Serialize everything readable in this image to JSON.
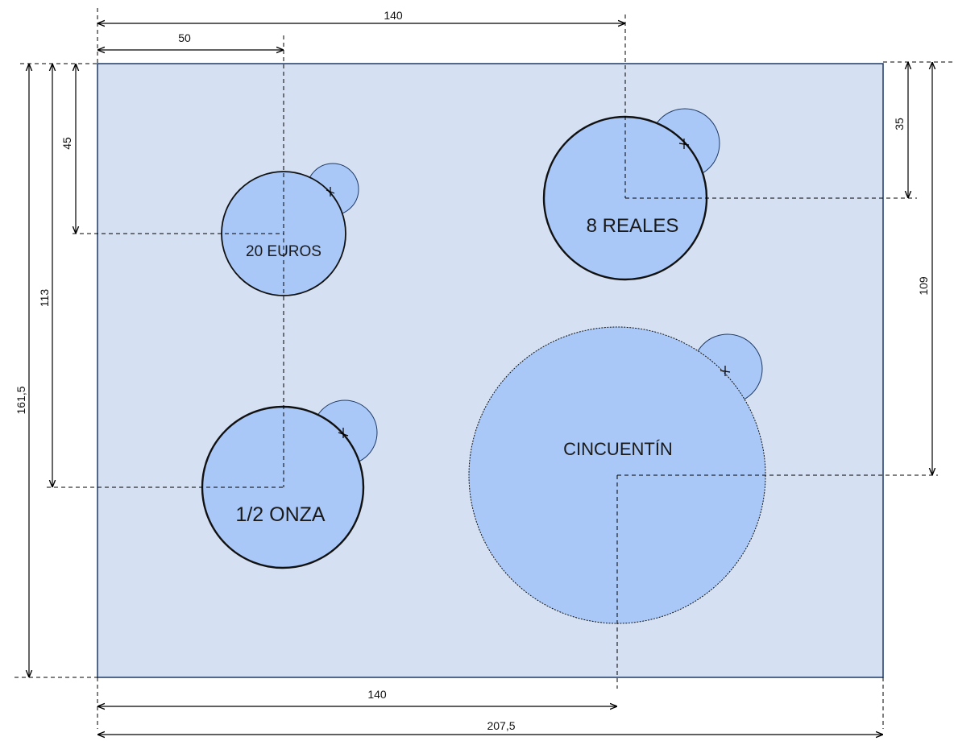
{
  "colors": {
    "board_fill": "#d5e1f2",
    "board_stroke": "#1f3a66",
    "coin_fill": "#a9c8f7",
    "line": "#000000"
  },
  "dimensions": {
    "top_140": "140",
    "top_50": "50",
    "left_45": "45",
    "left_113": "113",
    "left_161_5": "161,5",
    "right_35": "35",
    "right_109": "109",
    "bottom_140": "140",
    "bottom_207_5": "207,5"
  },
  "coins": {
    "euros20": "20 EUROS",
    "reales8": "8 REALES",
    "onza": "1/2 ONZA",
    "cincuentin": "CINCUENTÍN"
  }
}
